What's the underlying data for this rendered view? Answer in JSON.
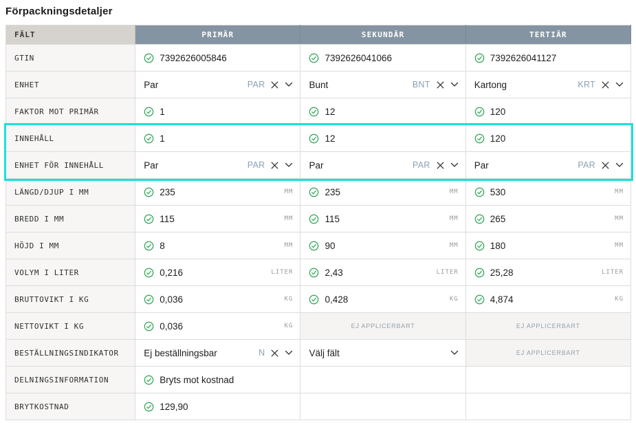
{
  "page": {
    "title": "Förpackningsdetaljer"
  },
  "colors": {
    "header_bg": "#8494a2",
    "field_header_bg": "#d6d2cd",
    "label_bg": "#f7f6f5",
    "check_green": "#3aa95f",
    "highlight_cyan": "#1ce0da",
    "na_bg": "#f5f4f3",
    "na_text": "#92a0ac",
    "code_text": "#8ba0b3",
    "unit_text": "#9b9b9b"
  },
  "table": {
    "field_header": "FÄLT",
    "columns": [
      "PRIMÄR",
      "SEKUNDÄR",
      "TERTIÄR"
    ],
    "na_label": "EJ APPLICERBART",
    "rows": [
      {
        "label": "GTIN",
        "highlight": false,
        "cells": [
          {
            "type": "check",
            "value": "7392626005846"
          },
          {
            "type": "check",
            "value": "7392626041066"
          },
          {
            "type": "check",
            "value": "7392626041127"
          }
        ]
      },
      {
        "label": "ENHET",
        "highlight": false,
        "cells": [
          {
            "type": "dropdown",
            "value": "Par",
            "code": "PAR"
          },
          {
            "type": "dropdown",
            "value": "Bunt",
            "code": "BNT"
          },
          {
            "type": "dropdown",
            "value": "Kartong",
            "code": "KRT"
          }
        ]
      },
      {
        "label": "FAKTOR MOT PRIMÄR",
        "highlight": false,
        "cells": [
          {
            "type": "check",
            "value": "1"
          },
          {
            "type": "check",
            "value": "12"
          },
          {
            "type": "check",
            "value": "120"
          }
        ]
      },
      {
        "label": "INNEHÅLL",
        "highlight": true,
        "cells": [
          {
            "type": "check",
            "value": "1"
          },
          {
            "type": "check",
            "value": "12"
          },
          {
            "type": "check",
            "value": "120"
          }
        ]
      },
      {
        "label": "ENHET FÖR INNEHÅLL",
        "highlight": true,
        "cells": [
          {
            "type": "dropdown",
            "value": "Par",
            "code": "PAR"
          },
          {
            "type": "dropdown",
            "value": "Par",
            "code": "PAR"
          },
          {
            "type": "dropdown",
            "value": "Par",
            "code": "PAR"
          }
        ]
      },
      {
        "label": "LÄNGD/DJUP I MM",
        "highlight": false,
        "cells": [
          {
            "type": "check",
            "value": "235",
            "unit": "MM"
          },
          {
            "type": "check",
            "value": "235",
            "unit": "MM"
          },
          {
            "type": "check",
            "value": "530",
            "unit": "MM"
          }
        ]
      },
      {
        "label": "BREDD I MM",
        "highlight": false,
        "cells": [
          {
            "type": "check",
            "value": "115",
            "unit": "MM"
          },
          {
            "type": "check",
            "value": "115",
            "unit": "MM"
          },
          {
            "type": "check",
            "value": "265",
            "unit": "MM"
          }
        ]
      },
      {
        "label": "HÖJD I MM",
        "highlight": false,
        "cells": [
          {
            "type": "check",
            "value": "8",
            "unit": "MM"
          },
          {
            "type": "check",
            "value": "90",
            "unit": "MM"
          },
          {
            "type": "check",
            "value": "180",
            "unit": "MM"
          }
        ]
      },
      {
        "label": "VOLYM I LITER",
        "highlight": false,
        "cells": [
          {
            "type": "check",
            "value": "0,216",
            "unit": "LITER"
          },
          {
            "type": "check",
            "value": "2,43",
            "unit": "LITER"
          },
          {
            "type": "check",
            "value": "25,28",
            "unit": "LITER"
          }
        ]
      },
      {
        "label": "BRUTTOVIKT I KG",
        "highlight": false,
        "cells": [
          {
            "type": "check",
            "value": "0,036",
            "unit": "KG"
          },
          {
            "type": "check",
            "value": "0,428",
            "unit": "KG"
          },
          {
            "type": "check",
            "value": "4,874",
            "unit": "KG"
          }
        ]
      },
      {
        "label": "NETTOVIKT I KG",
        "highlight": false,
        "cells": [
          {
            "type": "check",
            "value": "0,036",
            "unit": "KG"
          },
          {
            "type": "na"
          },
          {
            "type": "na"
          }
        ]
      },
      {
        "label": "BESTÄLLNINGSINDIKATOR",
        "highlight": false,
        "cells": [
          {
            "type": "dropdown",
            "value": "Ej beställningsbar",
            "code": "N"
          },
          {
            "type": "dropdown-placeholder",
            "value": "Välj fält"
          },
          {
            "type": "na"
          }
        ]
      },
      {
        "label": "DELNINGSINFORMATION",
        "highlight": false,
        "cells": [
          {
            "type": "check",
            "value": "Bryts mot kostnad"
          },
          {
            "type": "empty"
          },
          {
            "type": "empty"
          }
        ]
      },
      {
        "label": "BRYTKOSTNAD",
        "highlight": false,
        "cells": [
          {
            "type": "check",
            "value": "129,90"
          },
          {
            "type": "empty"
          },
          {
            "type": "empty"
          }
        ]
      }
    ]
  }
}
